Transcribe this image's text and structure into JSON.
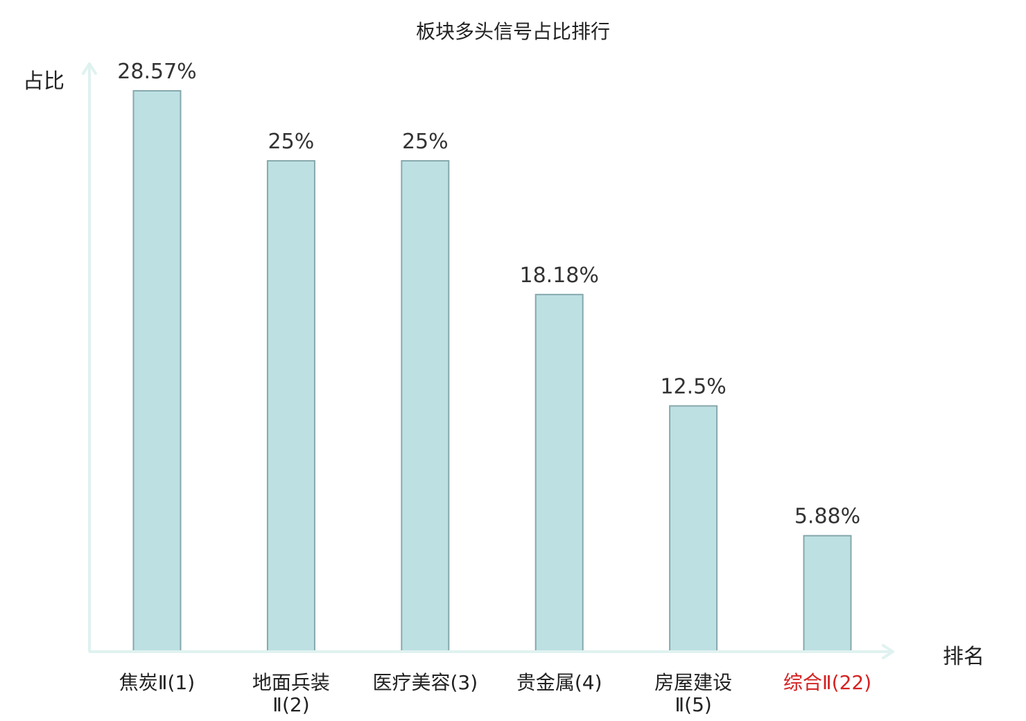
{
  "chart_data": {
    "type": "bar",
    "title": "板块多头信号占比排行",
    "ylabel": "占比",
    "xlabel": "排名",
    "categories": [
      [
        "焦炭Ⅱ(1)"
      ],
      [
        "地面兵装",
        "Ⅱ(2)"
      ],
      [
        "医疗美容(3)"
      ],
      [
        "贵金属(4)"
      ],
      [
        "房屋建设",
        "Ⅱ(5)"
      ],
      [
        "综合Ⅱ(22)"
      ]
    ],
    "values": [
      28.57,
      25,
      25,
      18.18,
      12.5,
      5.88
    ],
    "value_labels": [
      "28.57%",
      "25%",
      "25%",
      "18.18%",
      "12.5%",
      "5.88%"
    ],
    "highlight_index": 5,
    "ylim": [
      0,
      30
    ],
    "grid": false,
    "colors": {
      "bar_fill": "#bde0e3",
      "bar_stroke": "#86a8ad",
      "axis": "#dff2ef",
      "text": "#333333",
      "highlight_text": "#d42222"
    }
  }
}
